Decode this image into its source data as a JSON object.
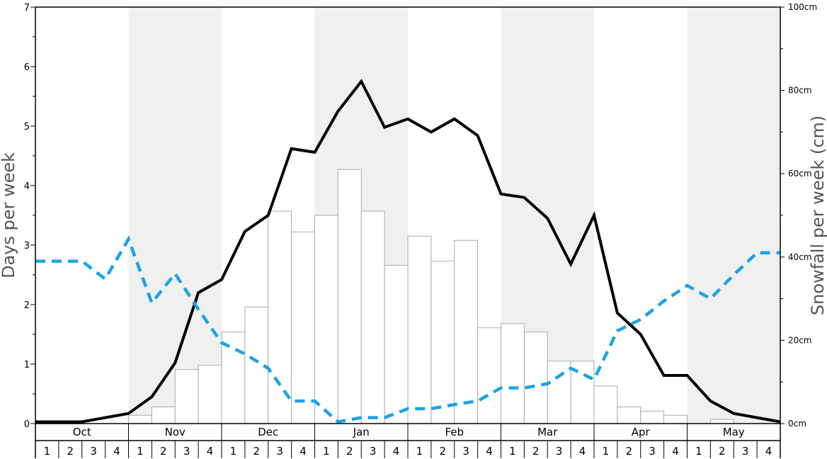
{
  "chart_data": {
    "type": "bar",
    "left_axis": {
      "label": "Days per week",
      "min": 0,
      "max": 7,
      "ticks": [
        "0",
        "1",
        "2",
        "3",
        "4",
        "5",
        "6",
        "7"
      ]
    },
    "right_axis": {
      "label": "Snowfall per week (cm)",
      "min": 0,
      "max": 100,
      "ticks": [
        "0cm",
        "20cm",
        "40cm",
        "60cm",
        "80cm",
        "100cm"
      ]
    },
    "months": [
      "Oct",
      "Nov",
      "Dec",
      "Jan",
      "Feb",
      "Mar",
      "Apr",
      "May"
    ],
    "weeks_per_month": [
      "1",
      "2",
      "3",
      "4"
    ],
    "shaded_months": [
      "Nov",
      "Jan",
      "Mar",
      "May"
    ],
    "colors": {
      "shade": "#f0f0f0",
      "bar_fill": "#ffffff",
      "bar_stroke": "#aaaaaa",
      "solid_line": "#000000",
      "dashed_line": "#1aa3e8"
    },
    "series": [
      {
        "type": "bar",
        "axis": "right",
        "values": [
          0,
          0,
          0,
          0,
          2,
          4,
          13,
          14,
          22,
          28,
          51,
          46,
          50,
          61,
          51,
          38,
          45,
          39,
          44,
          23,
          24,
          22,
          15,
          15,
          9,
          4,
          3,
          2,
          0,
          1,
          0,
          0
        ]
      },
      {
        "type": "line",
        "style": "solid",
        "axis": "left",
        "values": [
          0.03,
          0.03,
          0.03,
          0.1,
          0.17,
          0.45,
          1.02,
          2.2,
          2.42,
          3.23,
          3.5,
          4.62,
          4.56,
          5.25,
          5.75,
          4.98,
          5.12,
          4.9,
          5.12,
          4.84,
          3.86,
          3.8,
          3.45,
          2.68,
          3.5,
          1.86,
          1.5,
          0.81,
          0.81,
          0.38,
          0.17,
          0.1,
          0.03
        ]
      },
      {
        "type": "line",
        "style": "dashed",
        "axis": "left",
        "values": [
          2.73,
          2.73,
          2.73,
          2.43,
          3.1,
          2.03,
          2.52,
          1.92,
          1.36,
          1.17,
          0.93,
          0.38,
          0.38,
          0.03,
          0.1,
          0.1,
          0.25,
          0.25,
          0.32,
          0.38,
          0.6,
          0.6,
          0.67,
          0.93,
          0.74,
          1.56,
          1.75,
          2.06,
          2.32,
          2.1,
          2.5,
          2.87,
          2.87
        ]
      }
    ]
  }
}
